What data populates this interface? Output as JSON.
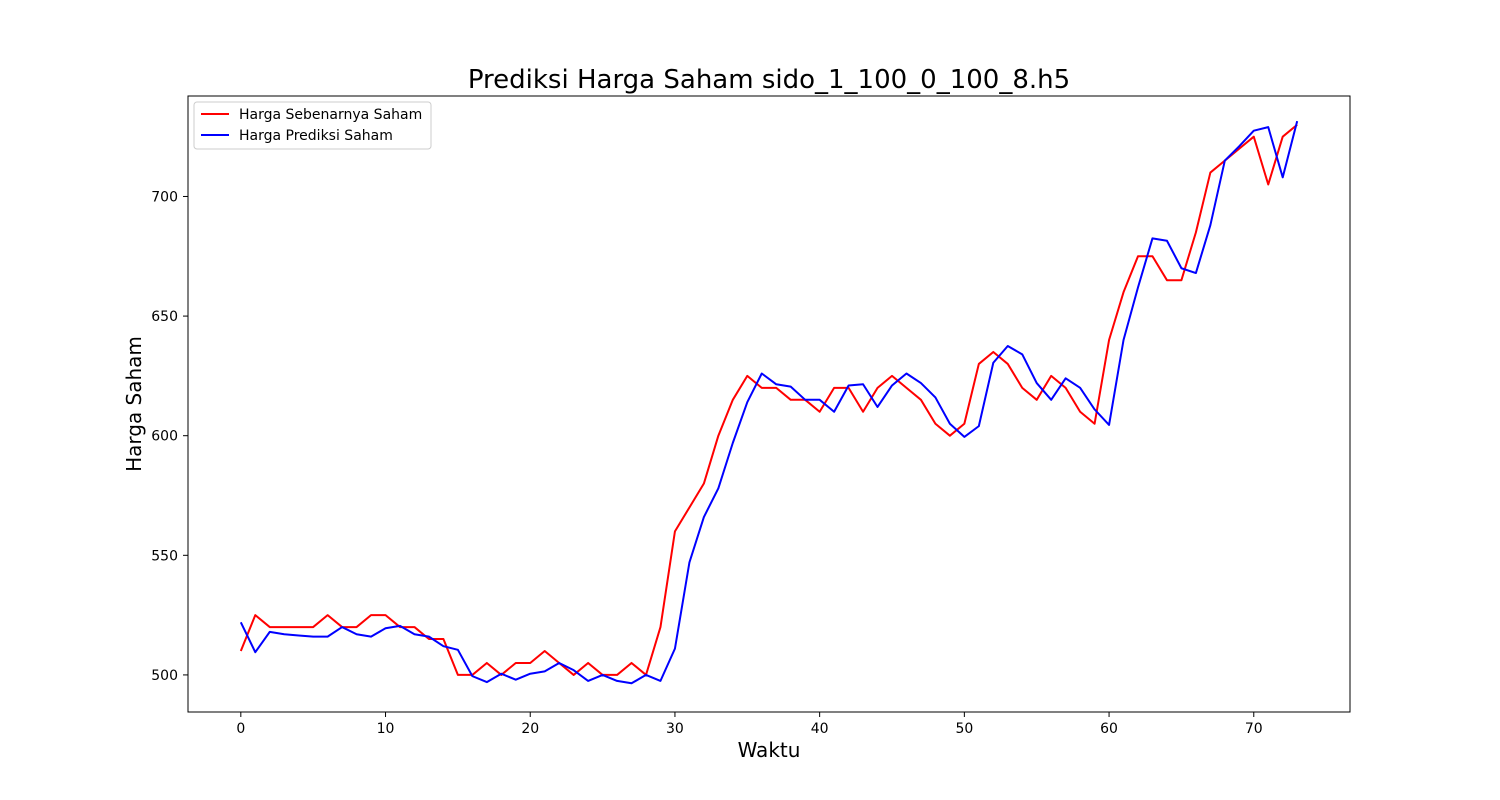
{
  "chart_data": {
    "type": "line",
    "title": "Prediksi Harga Saham sido_1_100_0_100_8.h5",
    "xlabel": "Waktu",
    "ylabel": "Harga Saham",
    "xlim": [
      -3.65,
      76.65
    ],
    "ylim": [
      484.5,
      742.0
    ],
    "xticks": [
      0,
      10,
      20,
      30,
      40,
      50,
      60,
      70
    ],
    "yticks": [
      500,
      550,
      600,
      650,
      700
    ],
    "grid": false,
    "legend_position": "top-left",
    "x": [
      0,
      1,
      2,
      3,
      4,
      5,
      6,
      7,
      8,
      9,
      10,
      11,
      12,
      13,
      14,
      15,
      16,
      17,
      18,
      19,
      20,
      21,
      22,
      23,
      24,
      25,
      26,
      27,
      28,
      29,
      30,
      31,
      32,
      33,
      34,
      35,
      36,
      37,
      38,
      39,
      40,
      41,
      42,
      43,
      44,
      45,
      46,
      47,
      48,
      49,
      50,
      51,
      52,
      53,
      54,
      55,
      56,
      57,
      58,
      59,
      60,
      61,
      62,
      63,
      64,
      65,
      66,
      67,
      68,
      69,
      70,
      71,
      72,
      73
    ],
    "series": [
      {
        "name": "Harga Sebenarnya Saham",
        "color": "#ff0000",
        "values": [
          510,
          525,
          520,
          520,
          520,
          520,
          525,
          520,
          520,
          525,
          525,
          520,
          520,
          515,
          515,
          500,
          500,
          505,
          500,
          505,
          505,
          510,
          505,
          500,
          505,
          500,
          500,
          505,
          500,
          520,
          560,
          570,
          580,
          600,
          615,
          625,
          620,
          620,
          615,
          615,
          610,
          620,
          620,
          610,
          620,
          625,
          620,
          615,
          605,
          600,
          605,
          630,
          635,
          630,
          620,
          615,
          625,
          620,
          610,
          605,
          640,
          660,
          675,
          675,
          665,
          665,
          685,
          710,
          715,
          720,
          725,
          705,
          725,
          730
        ]
      },
      {
        "name": "Harga Prediksi Saham",
        "color": "#0000ff",
        "values": [
          522,
          509.5,
          518,
          517,
          516.5,
          516,
          516,
          520,
          517,
          516,
          519.5,
          520.5,
          517,
          516,
          512,
          510.5,
          499.5,
          497,
          500.5,
          498,
          500.5,
          501.5,
          505,
          502,
          497.5,
          500,
          497.5,
          496.5,
          500,
          497.5,
          511,
          547,
          566,
          578,
          597,
          614,
          626,
          621.5,
          620.5,
          615,
          615,
          610,
          621,
          621.5,
          612,
          621,
          626,
          622,
          616,
          605,
          599.5,
          604,
          630.5,
          637.5,
          634,
          622,
          615,
          624,
          620,
          611,
          604.5,
          640,
          662,
          682.5,
          681.5,
          670,
          668,
          688,
          715,
          721,
          727.5,
          729,
          708,
          731.5
        ]
      }
    ]
  }
}
